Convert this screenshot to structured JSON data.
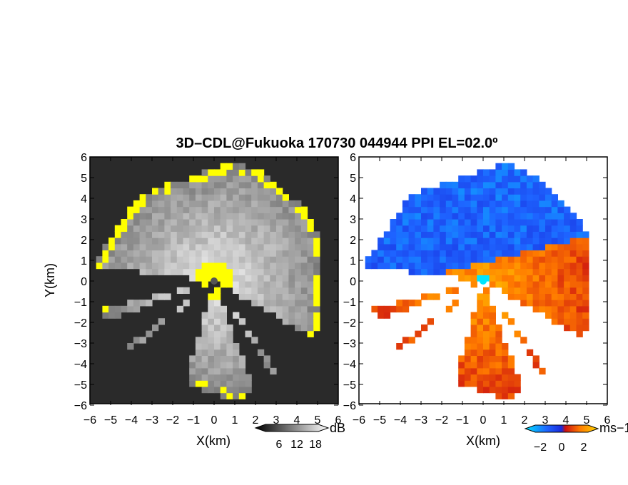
{
  "figure": {
    "title": "3D–CDL@Fukuoka 170730 044944 PPI EL=02.0º"
  },
  "chart_data": [
    {
      "type": "heatmap",
      "panel": "left",
      "projection": "PPI",
      "quantity_unit": "dB",
      "xlabel": "X(km)",
      "ylabel": "Y(km)",
      "xlim": [
        -6,
        6
      ],
      "ylim": [
        -6,
        6
      ],
      "x_ticks": [
        "−6",
        "−5",
        "−4",
        "−3",
        "−2",
        "−1",
        "0",
        "1",
        "2",
        "3",
        "4",
        "5",
        "6"
      ],
      "y_ticks": [
        "−6",
        "−5",
        "−4",
        "−3",
        "−2",
        "−1",
        "0",
        "1",
        "2",
        "3",
        "4",
        "5",
        "6"
      ],
      "colorbar": {
        "label": "dB",
        "tick_labels": [
          "6",
          "12",
          "18"
        ],
        "ticks": [
          6,
          12,
          18
        ],
        "range": [
          0,
          24
        ],
        "colors": [
          "#000000",
          "#ffffff"
        ],
        "highlight_color": "#ffff00"
      },
      "colormap": [
        "#000000",
        "#ffffff"
      ],
      "background_color": "#2a2a2a",
      "highlight_color": "#ffff00",
      "blocked_sectors_deg": [
        [
          120,
          145
        ],
        [
          148,
          160
        ],
        [
          196,
          230
        ],
        [
          233,
          250
        ],
        [
          256,
          277
        ]
      ],
      "coverage_edge_km": 5.3
    },
    {
      "type": "heatmap",
      "panel": "right",
      "projection": "PPI",
      "quantity_unit": "ms−1",
      "xlabel": "X(km)",
      "ylabel": "",
      "xlim": [
        -6,
        6
      ],
      "ylim": [
        -6,
        6
      ],
      "x_ticks": [
        "−6",
        "−5",
        "−4",
        "−3",
        "−2",
        "−1",
        "0",
        "1",
        "2",
        "3",
        "4",
        "5",
        "6"
      ],
      "y_ticks": [
        "−6",
        "−5",
        "−4",
        "−3",
        "−2",
        "−1",
        "0",
        "1",
        "2",
        "3",
        "4",
        "5",
        "6"
      ],
      "colorbar": {
        "label": "ms−1",
        "tick_labels": [
          "−2",
          "0",
          "2"
        ],
        "ticks": [
          -2,
          0,
          2
        ],
        "range": [
          -3,
          3
        ],
        "colors": [
          "#00e5ff",
          "#1e64ff",
          "#1a2adb",
          "#cc1010",
          "#ff7a00",
          "#ffd800"
        ]
      },
      "colormap": [
        "#00e5ff",
        "#1e64ff",
        "#1a2adb",
        "#cc1010",
        "#ff7a00",
        "#ffd800"
      ],
      "blocked_sectors_deg": [
        [
          120,
          145
        ],
        [
          148,
          160
        ],
        [
          196,
          230
        ],
        [
          233,
          250
        ],
        [
          256,
          277
        ]
      ],
      "coverage_edge_km": 5.3
    }
  ]
}
